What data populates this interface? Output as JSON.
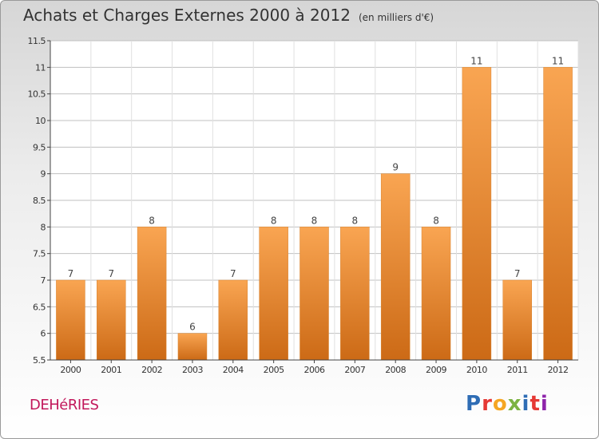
{
  "header": {
    "title": "Achats et Charges Externes 2000 à 2012",
    "unit": "(en milliers d'€)"
  },
  "footer": {
    "commune": "DEHéRIES",
    "logo_text": "Proxiti",
    "logo_colors": [
      "#2f6db5",
      "#e53935",
      "#f5a623",
      "#7cb342",
      "#2f6db5",
      "#e53935",
      "#8e24aa"
    ]
  },
  "colors": {
    "bar_top": "#f9a552",
    "bar_bottom": "#cc6a16",
    "grid": "#c0c0c0",
    "axis": "#444444"
  },
  "chart_data": {
    "type": "bar",
    "categories": [
      "2000",
      "2001",
      "2002",
      "2003",
      "2004",
      "2005",
      "2006",
      "2007",
      "2008",
      "2009",
      "2010",
      "2011",
      "2012"
    ],
    "values": [
      7,
      7,
      8,
      6,
      7,
      8,
      8,
      8,
      9,
      8,
      11,
      7,
      11
    ],
    "data_labels": [
      "7",
      "7",
      "8",
      "6",
      "7",
      "8",
      "8",
      "8",
      "9",
      "8",
      "11",
      "7",
      "11"
    ],
    "ylim": [
      5.5,
      11.5
    ],
    "yticks": [
      5.5,
      6,
      6.5,
      7,
      7.5,
      8,
      8.5,
      9,
      9.5,
      10,
      10.5,
      11,
      11.5
    ],
    "ytick_labels": [
      "5.5",
      "6",
      "6.5",
      "7",
      "7.5",
      "8",
      "8.5",
      "9",
      "9.5",
      "10",
      "10.5",
      "11",
      "11.5"
    ],
    "grid": true,
    "title": "Achats et Charges Externes 2000 à 2012",
    "xlabel": "",
    "ylabel": ""
  }
}
